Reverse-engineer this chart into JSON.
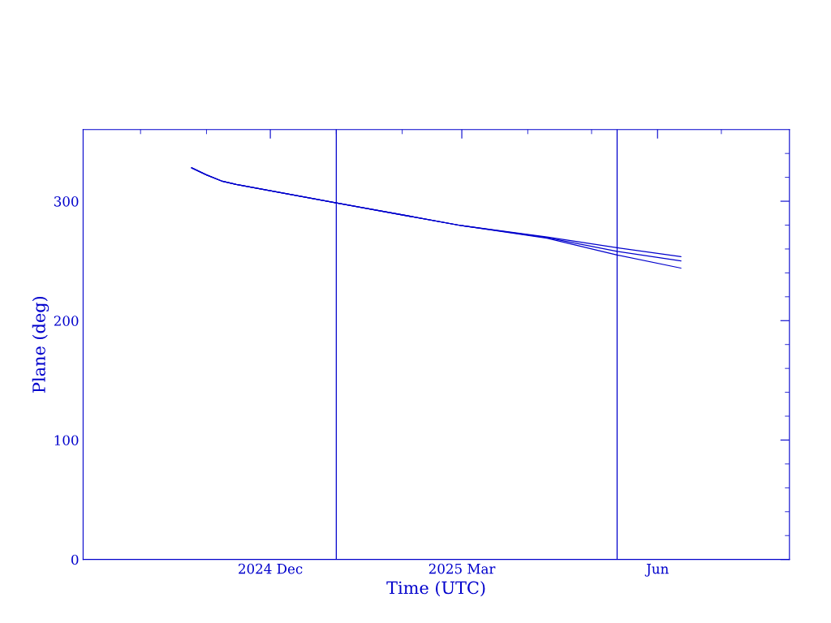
{
  "chart_data": {
    "type": "line",
    "xlabel": "Time (UTC)",
    "ylabel": "Plane (deg)",
    "xlim": [
      "2024-09-04",
      "2025-08-02"
    ],
    "ylim": [
      0,
      360
    ],
    "xticks": [
      {
        "value": "2024-10-01",
        "label": null
      },
      {
        "value": "2024-11-01",
        "label": null
      },
      {
        "value": "2024-12-01",
        "label": "2024 Dec"
      },
      {
        "value": "2025-01-01",
        "label": null
      },
      {
        "value": "2025-02-01",
        "label": null
      },
      {
        "value": "2025-03-01",
        "label": "2025 Mar"
      },
      {
        "value": "2025-04-01",
        "label": null
      },
      {
        "value": "2025-05-01",
        "label": null
      },
      {
        "value": "2025-06-01",
        "label": "Jun"
      },
      {
        "value": "2025-07-01",
        "label": null
      }
    ],
    "yticks": [
      0,
      {
        "value": 20,
        "label": null
      },
      {
        "value": 40,
        "label": null
      },
      {
        "value": 60,
        "label": null
      },
      {
        "value": 80,
        "label": null
      },
      100,
      {
        "value": 120,
        "label": null
      },
      {
        "value": 140,
        "label": null
      },
      {
        "value": 160,
        "label": null
      },
      {
        "value": 180,
        "label": null
      },
      200,
      {
        "value": 220,
        "label": null
      },
      {
        "value": 240,
        "label": null
      },
      {
        "value": 260,
        "label": null
      },
      {
        "value": 280,
        "label": null
      },
      300,
      {
        "value": 320,
        "label": null
      },
      {
        "value": 340,
        "label": null
      }
    ],
    "ref_lines": [
      {
        "axis": "x",
        "value": "2025-01-01",
        "color": "#0000cc"
      },
      {
        "axis": "x",
        "value": "2025-05-13",
        "color": "#0000cc"
      }
    ],
    "grid": false,
    "marker": "none",
    "line_style": "solid",
    "series": [
      {
        "color": "#0000cc",
        "x": [
          "2024-10-25",
          "2024-11-01",
          "2024-11-08",
          "2024-11-15",
          "2025-01-01",
          "2025-03-01",
          "2025-04-10",
          "2025-05-13",
          "2025-06-12"
        ],
        "values": [
          328,
          322,
          317,
          314,
          298.6,
          279.5,
          270,
          261,
          253.6
        ]
      },
      {
        "color": "#0000cc",
        "x": [
          "2024-10-25",
          "2024-11-01",
          "2024-11-08",
          "2024-11-15",
          "2025-01-01",
          "2025-03-01",
          "2025-04-10",
          "2025-05-13",
          "2025-06-12"
        ],
        "values": [
          328,
          322,
          317,
          314,
          298.6,
          279.5,
          269.5,
          258,
          250
        ]
      },
      {
        "color": "#0000cc",
        "x": [
          "2024-10-25",
          "2024-11-01",
          "2024-11-08",
          "2024-11-15",
          "2025-01-01",
          "2025-03-01",
          "2025-04-10",
          "2025-05-13",
          "2025-06-12"
        ],
        "values": [
          328,
          322,
          317,
          314,
          298.6,
          279.5,
          269,
          255,
          244
        ]
      }
    ]
  }
}
